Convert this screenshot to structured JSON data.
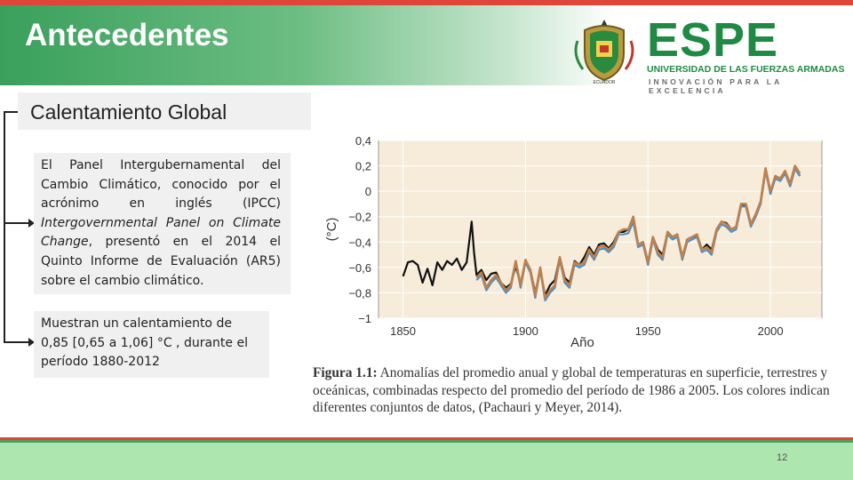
{
  "slide": {
    "title": "Antecedentes",
    "subtitle": "Calentamiento Global",
    "page_number": "12"
  },
  "logo": {
    "wordmark": "ESPE",
    "line1": "UNIVERSIDAD DE LAS FUERZAS ARMADAS",
    "line2": "INNOVACIÓN PARA LA EXCELENCIA",
    "seal_caption": "ECUADOR"
  },
  "paragraph1": {
    "text1": "El Panel Intergubernamental del Cambio Climático, conocido por el acrónimo en inglés (IPCC) ",
    "italic": "Intergovernmental Panel on Climate Change",
    "text2": ", presentó en el 2014 el Quinto Informe de Evaluación (AR5) sobre el cambio climático."
  },
  "paragraph2": {
    "text": "Muestran un calentamiento de 0,85 [0,65 a 1,06] °C , durante el período 1880-2012"
  },
  "caption": {
    "label": "Figura 1.1:",
    "text": " Anomalías del promedio anual y global de temperaturas en superficie, terrestres y oceánicas, combinadas respecto del promedio del período de 1986 a 2005. Los colores indican diferentes conjuntos de datos, (Pachauri y Meyer, 2014)."
  },
  "colors": {
    "accent_red": "#e0453a",
    "brand_green": "#1f8a44",
    "footer_green": "#aee6b0",
    "plot_bg": "#f6ecd9"
  },
  "chart_data": {
    "type": "line",
    "title": "",
    "xlabel": "Año",
    "ylabel": "(°C)",
    "xlim": [
      1840,
      2021
    ],
    "ylim": [
      -1,
      0.4
    ],
    "xticks": [
      1850,
      1900,
      1950,
      2000
    ],
    "yticks": [
      0.4,
      0.2,
      0,
      -0.2,
      -0.4,
      -0.6,
      -0.8,
      -1
    ],
    "ytick_labels": [
      "0,4",
      "0,2",
      "0",
      "−0,2",
      "−0,4",
      "−0,6",
      "−0,8",
      "−1"
    ],
    "grid": true,
    "series": [
      {
        "color": "#111111",
        "x": [
          1850,
          1852,
          1854,
          1856,
          1858,
          1860,
          1862,
          1864,
          1866,
          1868,
          1870,
          1872,
          1874,
          1876,
          1878,
          1879,
          1880,
          1882,
          1884,
          1886,
          1888,
          1890,
          1892,
          1894,
          1896,
          1898,
          1900,
          1902,
          1904,
          1906,
          1908,
          1910,
          1912,
          1914,
          1916,
          1918,
          1920,
          1922,
          1924,
          1926,
          1928,
          1930,
          1932,
          1934,
          1936,
          1938,
          1940,
          1942,
          1944,
          1946,
          1948,
          1950,
          1952,
          1954,
          1956,
          1958,
          1960,
          1962,
          1964,
          1966,
          1968,
          1970,
          1972,
          1974,
          1976,
          1978,
          1980,
          1982,
          1984,
          1986,
          1988,
          1990,
          1992,
          1994,
          1996,
          1998,
          2000,
          2002,
          2004,
          2006,
          2008,
          2010,
          2012
        ],
        "y": [
          -0.67,
          -0.56,
          -0.55,
          -0.58,
          -0.72,
          -0.61,
          -0.74,
          -0.56,
          -0.62,
          -0.55,
          -0.58,
          -0.53,
          -0.62,
          -0.56,
          -0.24,
          -0.48,
          -0.66,
          -0.62,
          -0.7,
          -0.65,
          -0.64,
          -0.72,
          -0.76,
          -0.73,
          -0.59,
          -0.73,
          -0.55,
          -0.62,
          -0.8,
          -0.62,
          -0.82,
          -0.74,
          -0.7,
          -0.52,
          -0.68,
          -0.72,
          -0.55,
          -0.58,
          -0.52,
          -0.44,
          -0.5,
          -0.42,
          -0.41,
          -0.45,
          -0.4,
          -0.32,
          -0.32,
          -0.3,
          -0.24,
          -0.42,
          -0.4,
          -0.56,
          -0.36,
          -0.46,
          -0.5,
          -0.32,
          -0.36,
          -0.34,
          -0.52,
          -0.38,
          -0.36,
          -0.35,
          -0.46,
          -0.42,
          -0.46,
          -0.3,
          -0.24,
          -0.25,
          -0.3,
          -0.28,
          -0.1,
          -0.12,
          -0.26,
          -0.18,
          -0.08,
          0.18,
          -0.02,
          0.12,
          0.1,
          0.16,
          0.04,
          0.18,
          0.12
        ]
      },
      {
        "color": "#4d8fc9",
        "x": [
          1850,
          1852,
          1854,
          1856,
          1858,
          1860,
          1862,
          1864,
          1866,
          1868,
          1870,
          1872,
          1874,
          1876,
          1878,
          1880,
          1882,
          1884,
          1886,
          1888,
          1890,
          1892,
          1894,
          1896,
          1898,
          1900,
          1902,
          1904,
          1906,
          1908,
          1910,
          1912,
          1914,
          1916,
          1918,
          1920,
          1922,
          1924,
          1926,
          1928,
          1930,
          1932,
          1934,
          1936,
          1938,
          1940,
          1942,
          1944,
          1946,
          1948,
          1950,
          1952,
          1954,
          1956,
          1958,
          1960,
          1962,
          1964,
          1966,
          1968,
          1970,
          1972,
          1974,
          1976,
          1978,
          1980,
          1982,
          1984,
          1986,
          1988,
          1990,
          1992,
          1994,
          1996,
          1998,
          2000,
          2002,
          2004,
          2006,
          2008,
          2010,
          2012
        ],
        "y": [
          null,
          null,
          null,
          null,
          null,
          null,
          null,
          null,
          null,
          null,
          null,
          null,
          null,
          null,
          null,
          -0.7,
          -0.66,
          -0.78,
          -0.72,
          -0.68,
          -0.74,
          -0.8,
          -0.76,
          -0.56,
          -0.76,
          -0.56,
          -0.64,
          -0.84,
          -0.62,
          -0.86,
          -0.8,
          -0.76,
          -0.54,
          -0.72,
          -0.76,
          -0.58,
          -0.6,
          -0.58,
          -0.48,
          -0.54,
          -0.46,
          -0.45,
          -0.48,
          -0.44,
          -0.34,
          -0.34,
          -0.33,
          -0.24,
          -0.44,
          -0.42,
          -0.58,
          -0.38,
          -0.5,
          -0.54,
          -0.34,
          -0.38,
          -0.36,
          -0.54,
          -0.4,
          -0.38,
          -0.36,
          -0.48,
          -0.46,
          -0.5,
          -0.32,
          -0.26,
          -0.28,
          -0.32,
          -0.3,
          -0.12,
          -0.12,
          -0.28,
          -0.2,
          -0.1,
          0.16,
          -0.02,
          0.1,
          0.08,
          0.14,
          0.04,
          0.18,
          0.12
        ]
      },
      {
        "color": "#c0804a",
        "x": [
          1850,
          1852,
          1854,
          1856,
          1858,
          1860,
          1862,
          1864,
          1866,
          1868,
          1870,
          1872,
          1874,
          1876,
          1878,
          1880,
          1882,
          1884,
          1886,
          1888,
          1890,
          1892,
          1894,
          1896,
          1898,
          1900,
          1902,
          1904,
          1906,
          1908,
          1910,
          1912,
          1914,
          1916,
          1918,
          1920,
          1922,
          1924,
          1926,
          1928,
          1930,
          1932,
          1934,
          1936,
          1938,
          1940,
          1942,
          1944,
          1946,
          1948,
          1950,
          1952,
          1954,
          1956,
          1958,
          1960,
          1962,
          1964,
          1966,
          1968,
          1970,
          1972,
          1974,
          1976,
          1978,
          1980,
          1982,
          1984,
          1986,
          1988,
          1990,
          1992,
          1994,
          1996,
          1998,
          2000,
          2002,
          2004,
          2006,
          2008,
          2010,
          2012
        ],
        "y": [
          null,
          null,
          null,
          null,
          null,
          null,
          null,
          null,
          null,
          null,
          null,
          null,
          null,
          null,
          null,
          -0.68,
          -0.64,
          -0.76,
          -0.7,
          -0.66,
          -0.72,
          -0.78,
          -0.74,
          -0.55,
          -0.74,
          -0.54,
          -0.62,
          -0.82,
          -0.6,
          -0.84,
          -0.78,
          -0.74,
          -0.52,
          -0.7,
          -0.74,
          -0.56,
          -0.58,
          -0.56,
          -0.46,
          -0.52,
          -0.44,
          -0.43,
          -0.46,
          -0.42,
          -0.32,
          -0.3,
          -0.3,
          -0.2,
          -0.42,
          -0.4,
          -0.56,
          -0.36,
          -0.48,
          -0.52,
          -0.32,
          -0.36,
          -0.34,
          -0.52,
          -0.38,
          -0.36,
          -0.34,
          -0.46,
          -0.44,
          -0.48,
          -0.3,
          -0.24,
          -0.26,
          -0.3,
          -0.28,
          -0.1,
          -0.1,
          -0.26,
          -0.18,
          -0.08,
          0.18,
          0.0,
          0.12,
          0.1,
          0.16,
          0.06,
          0.2,
          0.14
        ]
      }
    ]
  }
}
